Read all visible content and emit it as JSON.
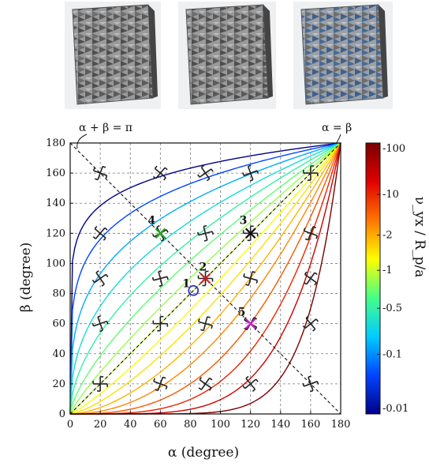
{
  "chart_data": {
    "type": "line",
    "title": "",
    "xlabel": "α (degree)",
    "ylabel": "β (degree)",
    "xlim": [
      0,
      180
    ],
    "ylim": [
      0,
      180
    ],
    "x_ticks": [
      "0",
      "20",
      "40",
      "60",
      "80",
      "100",
      "120",
      "140",
      "160",
      "180"
    ],
    "y_ticks": [
      "0",
      "20",
      "40",
      "60",
      "80",
      "100",
      "120",
      "140",
      "160",
      "180"
    ],
    "grid": true,
    "annotations": {
      "anti_diagonal": "α + β = π",
      "diagonal": "α = β"
    },
    "contour_exponents": [
      0.12,
      0.2,
      0.3,
      0.42,
      0.55,
      0.7,
      0.85,
      1,
      1.18,
      1.4,
      1.7,
      2.1,
      2.7,
      3.6,
      5,
      8
    ],
    "points": [
      {
        "label": "1",
        "x": 82,
        "y": 82,
        "color": "#3333cc",
        "marker": "circle"
      },
      {
        "label": "2",
        "x": 90,
        "y": 90,
        "color": "#cc2222",
        "marker": "x"
      },
      {
        "label": "3",
        "x": 120,
        "y": 120,
        "color": "#111111",
        "marker": "x"
      },
      {
        "label": "4",
        "x": 60,
        "y": 120,
        "color": "#22aa22",
        "marker": "x"
      },
      {
        "label": "5",
        "x": 120,
        "y": 60,
        "color": "#cc22cc",
        "marker": "x"
      }
    ],
    "colorbar": {
      "label": "ν_yx / R_p/a",
      "tick_labels": [
        "-100",
        "-10",
        "-2",
        "-1",
        "-0.5",
        "-0.1",
        "-0.01"
      ],
      "colors_top_to_bottom": [
        "#7a0000",
        "#e00000",
        "#ff7700",
        "#ffff00",
        "#44ff88",
        "#00ccff",
        "#0044ff",
        "#000088"
      ]
    },
    "structure_marker_x": [
      20,
      60,
      90,
      120,
      160
    ],
    "structure_marker_y": [
      20,
      60,
      90,
      120,
      160
    ]
  },
  "images": [
    {
      "name": "structure-render-1"
    },
    {
      "name": "structure-render-2"
    },
    {
      "name": "structure-render-3"
    }
  ]
}
